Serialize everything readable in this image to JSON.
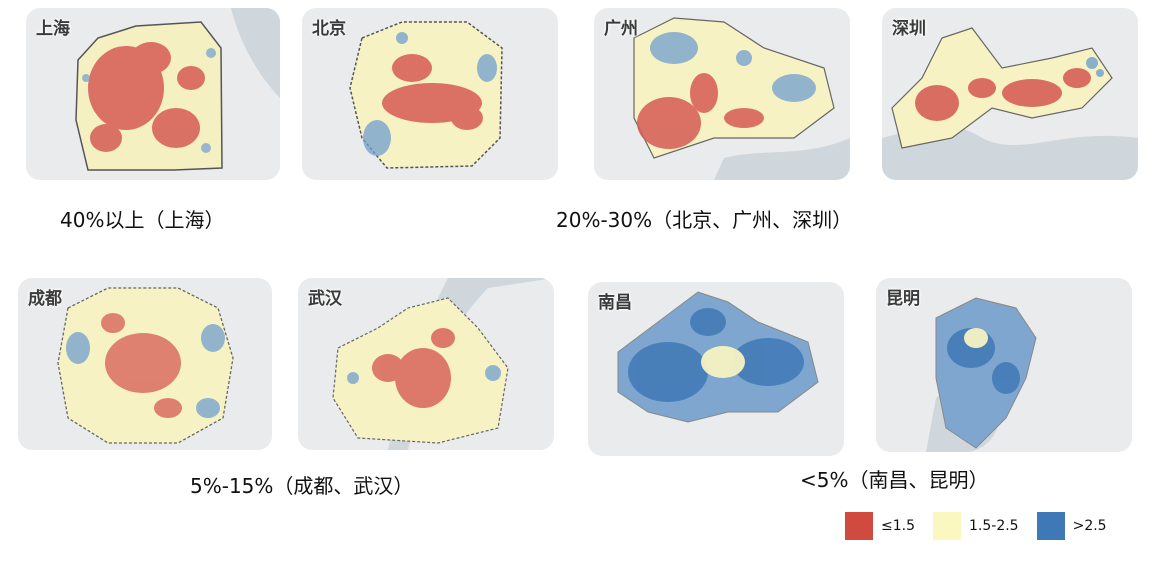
{
  "cities": [
    {
      "id": "shanghai",
      "name": "上海"
    },
    {
      "id": "beijing",
      "name": "北京"
    },
    {
      "id": "guangzhou",
      "name": "广州"
    },
    {
      "id": "shenzhen",
      "name": "深圳"
    },
    {
      "id": "chengdu",
      "name": "成都"
    },
    {
      "id": "wuhan",
      "name": "武汉"
    },
    {
      "id": "nanchang",
      "name": "南昌"
    },
    {
      "id": "kunming",
      "name": "昆明"
    }
  ],
  "captions": {
    "group1": "40%以上（上海）",
    "group2": "20%-30%（北京、广州、深圳）",
    "group3": "5%-15%（成都、武汉）",
    "group4": "<5%（南昌、昆明）"
  },
  "legend": [
    {
      "label": "≤1.5",
      "color": "#d04a3f"
    },
    {
      "label": "1.5-2.5",
      "color": "#fbf7c0"
    },
    {
      "label": ">2.5",
      "color": "#3f78b6"
    }
  ]
}
